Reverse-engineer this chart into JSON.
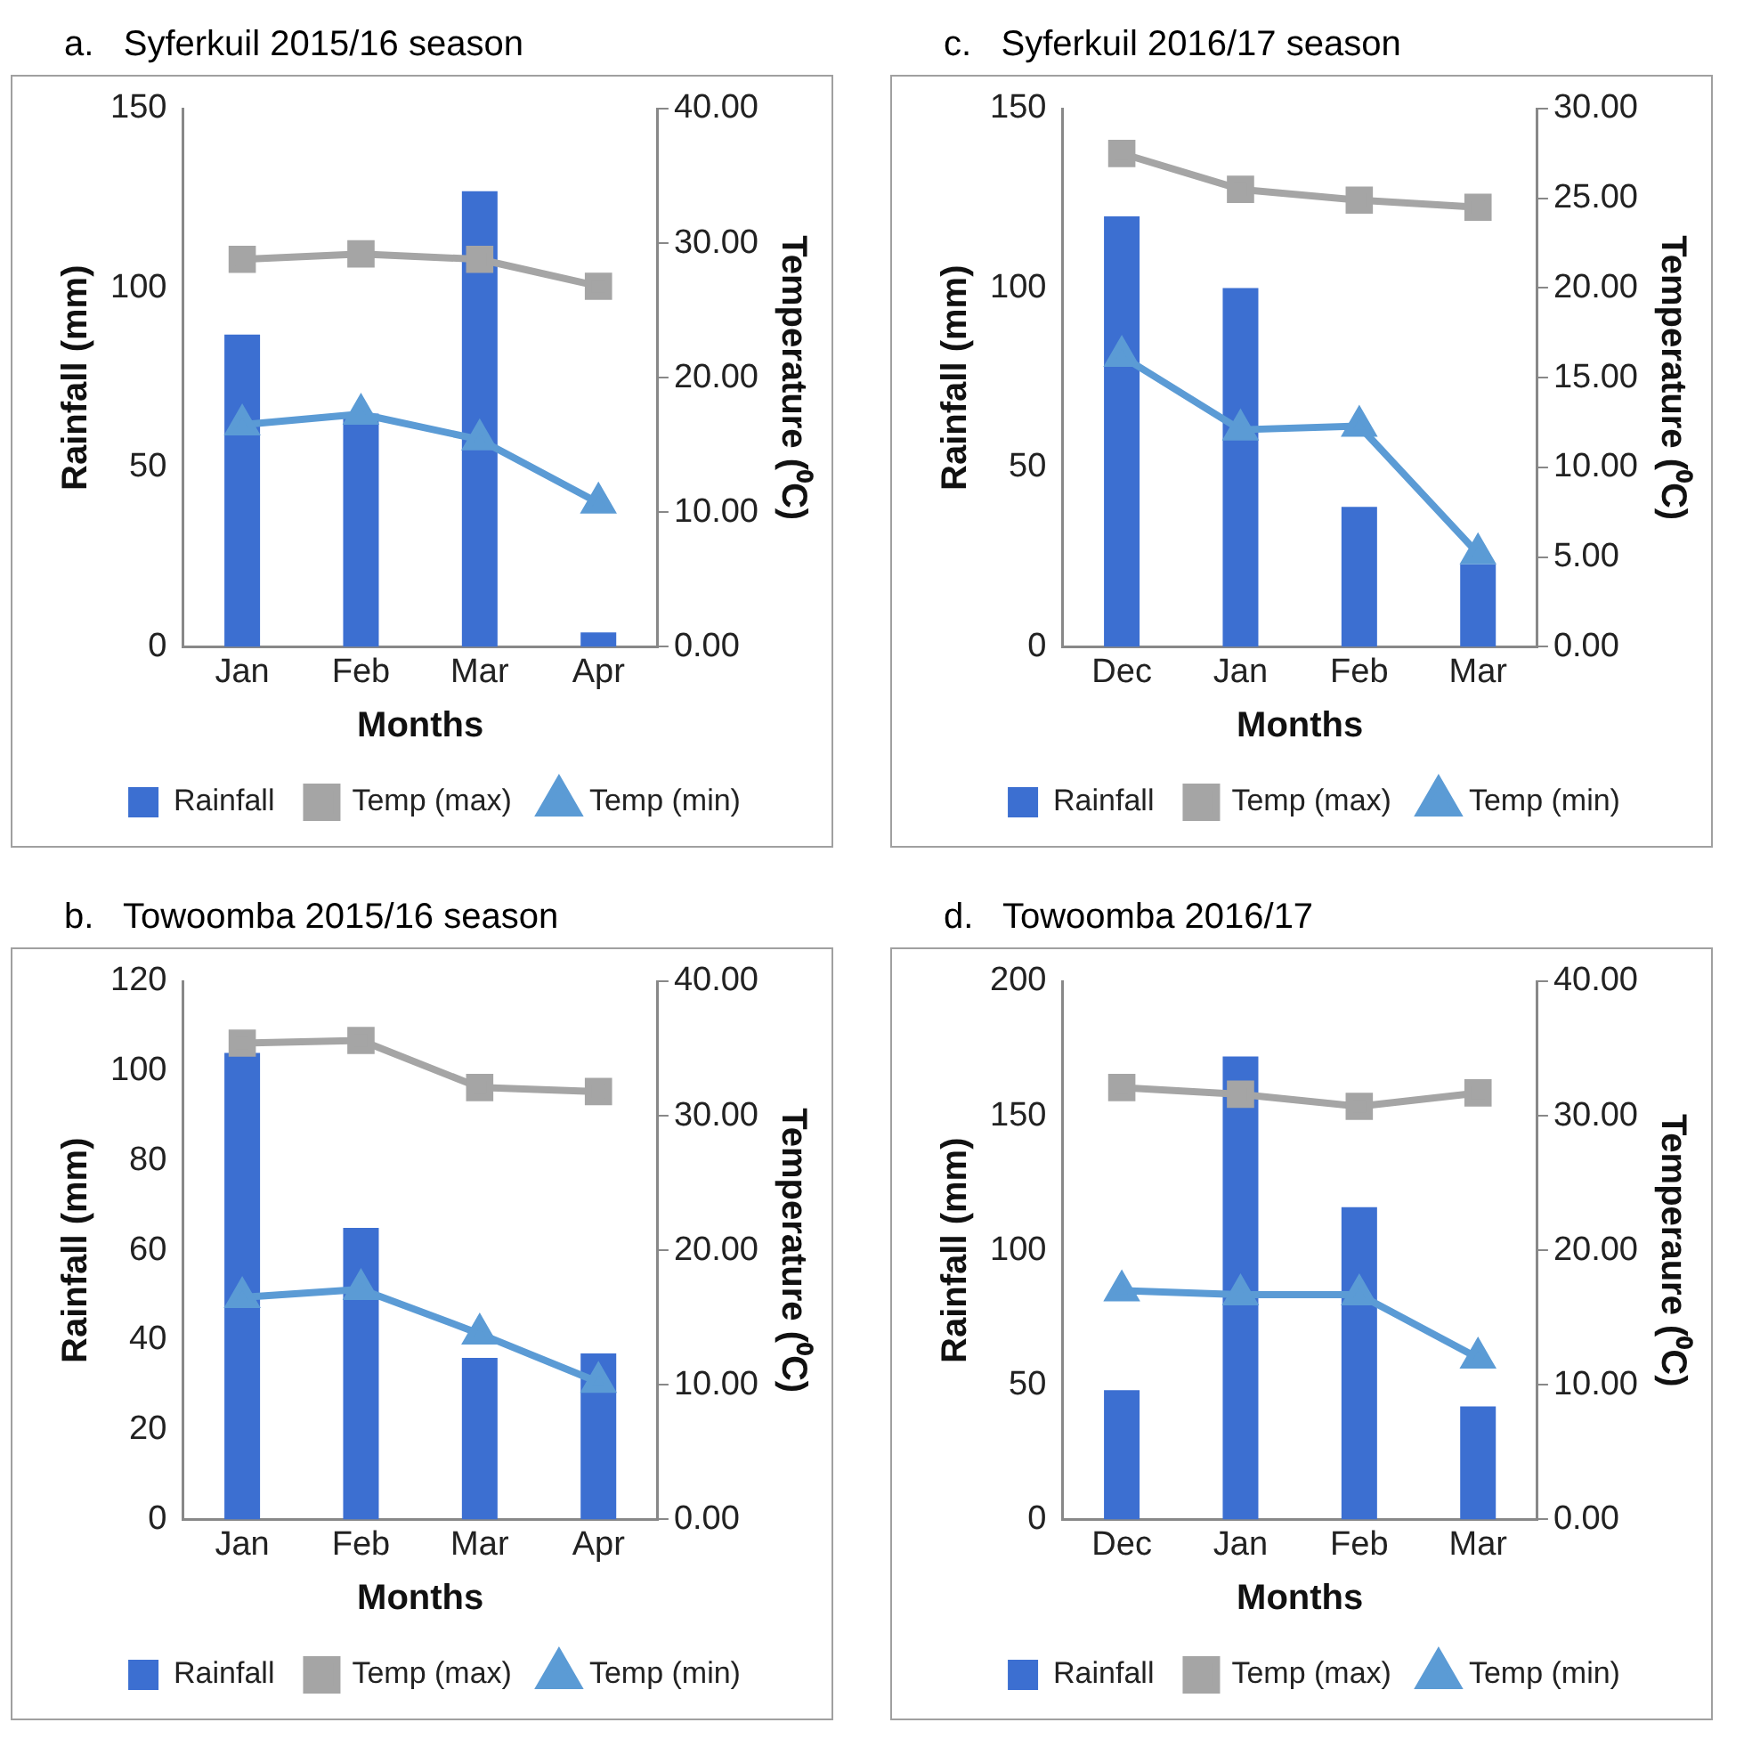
{
  "chart_data": [
    {
      "type": "bar",
      "title": "a.   Syferkuil 2015/16 season",
      "xlabel": "Months",
      "ylabel": "Rainfall (mm)",
      "y2label": "Temperature (⁰C)",
      "categories": [
        "Jan",
        "Feb",
        "Mar",
        "Apr"
      ],
      "ylim": [
        0,
        150
      ],
      "yticks": [
        0,
        50,
        100,
        150
      ],
      "y2lim": [
        0,
        40
      ],
      "y2ticks": [
        {
          "value": 0,
          "label": "0.00"
        },
        {
          "value": 10,
          "label": "10.00"
        },
        {
          "value": 20,
          "label": "20.00"
        },
        {
          "value": 30,
          "label": "30.00"
        },
        {
          "value": 40,
          "label": "40.00"
        }
      ],
      "legend": "bottom",
      "series": [
        {
          "name": "Rainfall",
          "color": "#3c6fd1",
          "values": [
            87,
            65,
            127,
            4
          ]
        },
        {
          "name": "Temp (max)",
          "type": "line",
          "axis": "y2",
          "marker": "square",
          "color": "#a5a5a5",
          "values": [
            28.8,
            29.2,
            28.8,
            26.8
          ]
        },
        {
          "name": "Temp (min)",
          "type": "line",
          "axis": "y2",
          "marker": "triangle",
          "color": "#5b9bd5",
          "values": [
            16.5,
            17.3,
            15.4,
            10.7
          ]
        }
      ]
    },
    {
      "type": "bar",
      "title": "c.   Syferkuil 2016/17 season",
      "xlabel": "Months",
      "ylabel": "Rainfall (mm)",
      "y2label": "Temperature (⁰C)",
      "categories": [
        "Dec",
        "Jan",
        "Feb",
        "Mar"
      ],
      "ylim": [
        0,
        150
      ],
      "yticks": [
        0,
        50,
        100,
        150
      ],
      "y2lim": [
        0,
        30
      ],
      "y2ticks": [
        {
          "value": 0,
          "label": "0.00"
        },
        {
          "value": 5,
          "label": "5.00"
        },
        {
          "value": 10,
          "label": "10.00"
        },
        {
          "value": 15,
          "label": "15.00"
        },
        {
          "value": 20,
          "label": "20.00"
        },
        {
          "value": 25,
          "label": "25.00"
        },
        {
          "value": 30,
          "label": "30.00"
        }
      ],
      "legend": "bottom",
      "series": [
        {
          "name": "Rainfall",
          "color": "#3c6fd1",
          "values": [
            120,
            100,
            39,
            23
          ]
        },
        {
          "name": "Temp (max)",
          "type": "line",
          "axis": "y2",
          "marker": "square",
          "color": "#a5a5a5",
          "values": [
            27.5,
            25.5,
            24.9,
            24.5
          ]
        },
        {
          "name": "Temp (min)",
          "type": "line",
          "axis": "y2",
          "marker": "triangle",
          "color": "#5b9bd5",
          "values": [
            16.2,
            12.1,
            12.3,
            5.2
          ]
        }
      ]
    },
    {
      "type": "bar",
      "title": "b.   Towoomba 2015/16 season",
      "xlabel": "Months",
      "ylabel": "Rainfall (mm)",
      "y2label": "Temperature (⁰C)",
      "categories": [
        "Jan",
        "Feb",
        "Mar",
        "Apr"
      ],
      "ylim": [
        0,
        120
      ],
      "yticks": [
        0,
        20,
        40,
        60,
        80,
        100,
        120
      ],
      "y2lim": [
        0,
        40
      ],
      "y2ticks": [
        {
          "value": 0,
          "label": "0.00"
        },
        {
          "value": 10,
          "label": "10.00"
        },
        {
          "value": 20,
          "label": "20.00"
        },
        {
          "value": 30,
          "label": "30.00"
        },
        {
          "value": 40,
          "label": "40.00"
        }
      ],
      "legend": "bottom",
      "series": [
        {
          "name": "Rainfall",
          "color": "#3c6fd1",
          "values": [
            104,
            65,
            36,
            37
          ]
        },
        {
          "name": "Temp (max)",
          "type": "line",
          "axis": "y2",
          "marker": "square",
          "color": "#a5a5a5",
          "values": [
            35.4,
            35.6,
            32.1,
            31.8
          ]
        },
        {
          "name": "Temp (min)",
          "type": "line",
          "axis": "y2",
          "marker": "triangle",
          "color": "#5b9bd5",
          "values": [
            16.5,
            17.1,
            13.8,
            10.2
          ]
        }
      ]
    },
    {
      "type": "bar",
      "title": "d.   Towoomba 2016/17",
      "xlabel": "Months",
      "ylabel": "Rainfall (mm)",
      "y2label": "Temperaure (⁰C)",
      "categories": [
        "Dec",
        "Jan",
        "Feb",
        "Mar"
      ],
      "ylim": [
        0,
        200
      ],
      "yticks": [
        0,
        50,
        100,
        150,
        200
      ],
      "y2lim": [
        0,
        40
      ],
      "y2ticks": [
        {
          "value": 0,
          "label": "0.00"
        },
        {
          "value": 10,
          "label": "10.00"
        },
        {
          "value": 20,
          "label": "20.00"
        },
        {
          "value": 30,
          "label": "30.00"
        },
        {
          "value": 40,
          "label": "40.00"
        }
      ],
      "legend": "bottom",
      "series": [
        {
          "name": "Rainfall",
          "color": "#3c6fd1",
          "values": [
            48,
            172,
            116,
            42
          ]
        },
        {
          "name": "Temp (max)",
          "type": "line",
          "axis": "y2",
          "marker": "square",
          "color": "#a5a5a5",
          "values": [
            32.1,
            31.6,
            30.7,
            31.7
          ]
        },
        {
          "name": "Temp (min)",
          "type": "line",
          "axis": "y2",
          "marker": "triangle",
          "color": "#5b9bd5",
          "values": [
            17.0,
            16.7,
            16.7,
            12.0
          ]
        }
      ]
    }
  ]
}
